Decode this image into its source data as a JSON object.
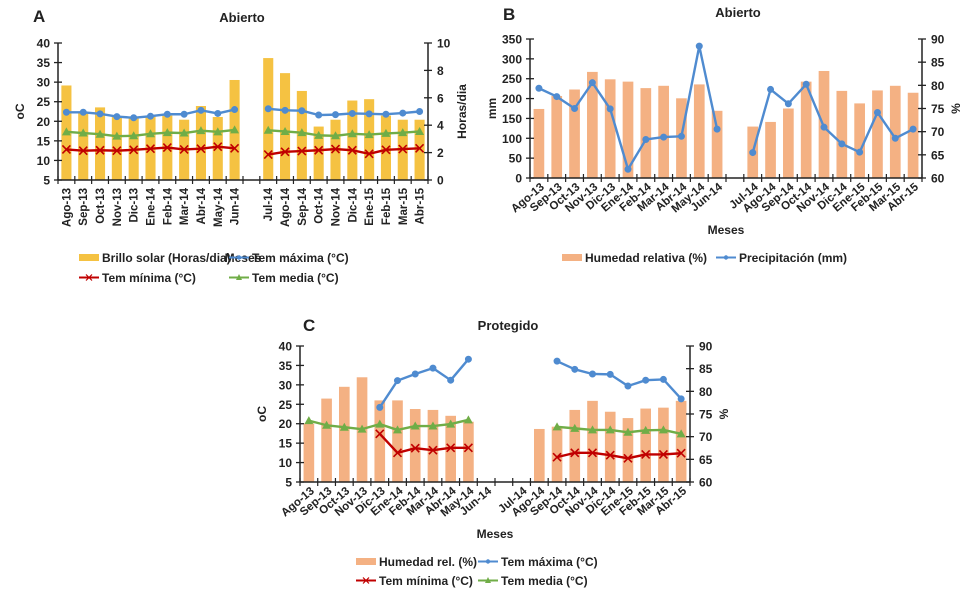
{
  "colors": {
    "brillo": "#F5C242",
    "humedad": "#F4B183",
    "max": "#4F8BD0",
    "min": "#C00000",
    "media": "#70AD47",
    "axis": "#222222"
  },
  "chart_data": [
    {
      "id": "A",
      "panel_letter": "A",
      "type": "bar",
      "title": "Abierto",
      "xlabel": "Meses",
      "ylabel": "oC",
      "y2label": "Horas/dia",
      "ylim": [
        5,
        40
      ],
      "y2lim": [
        0,
        10
      ],
      "yticks": [
        "5",
        "10",
        "15",
        "20",
        "25",
        "30",
        "35",
        "40"
      ],
      "y2ticks": [
        "0",
        "2",
        "4",
        "6",
        "8",
        "10"
      ],
      "label_rotation": "vertical",
      "categories": [
        "Ago-13",
        "Sep-13",
        "Oct-13",
        "Nov-13",
        "Dic-13",
        "Ene-14",
        "Feb-14",
        "Mar-14",
        "Abr-14",
        "May-14",
        "Jun-14",
        "",
        "Jul-14",
        "Ago-14",
        "Sep-14",
        "Oct-14",
        "Nov-14",
        "Dic-14",
        "Ene-15",
        "Feb-15",
        "Mar-15",
        "Abr-15"
      ],
      "series": [
        {
          "name": "Brillo solar (Horas/dia)",
          "kind": "bar",
          "axis": "right",
          "color_key": "brillo",
          "values": [
            6.9,
            4.9,
            5.3,
            4.6,
            4.6,
            4.7,
            4.7,
            4.4,
            5.4,
            4.6,
            7.3,
            null,
            8.9,
            7.8,
            6.5,
            3.9,
            4.4,
            5.8,
            5.9,
            4.7,
            4.4,
            4.4
          ]
        },
        {
          "name": "Tem máxima (°C)",
          "kind": "line",
          "marker": "circle",
          "axis": "left",
          "color_key": "max",
          "values": [
            22.3,
            22.3,
            21.9,
            21.2,
            20.9,
            21.3,
            21.8,
            21.8,
            22.8,
            22.0,
            23.0,
            null,
            23.2,
            22.8,
            22.7,
            21.6,
            21.7,
            22.0,
            21.9,
            21.8,
            22.1,
            22.5
          ]
        },
        {
          "name": "Tem mínima (°C)",
          "kind": "line",
          "marker": "x",
          "axis": "left",
          "color_key": "min",
          "values": [
            12.8,
            12.5,
            12.6,
            12.5,
            12.7,
            13.0,
            13.3,
            12.8,
            13.0,
            13.5,
            13.1,
            null,
            11.5,
            12.2,
            12.4,
            12.6,
            12.9,
            12.6,
            11.7,
            12.7,
            12.9,
            13.1
          ]
        },
        {
          "name": "Tem media (°C)",
          "kind": "line",
          "marker": "triangle",
          "axis": "left",
          "color_key": "media",
          "values": [
            17.3,
            17.0,
            16.7,
            16.2,
            16.3,
            16.8,
            17.1,
            17.0,
            17.6,
            17.3,
            17.8,
            null,
            17.7,
            17.4,
            17.1,
            16.4,
            16.3,
            16.8,
            16.6,
            16.9,
            17.1,
            17.4
          ]
        }
      ],
      "legend": [
        [
          "Brillo solar (Horas/dia)",
          "Tem máxima (°C)"
        ],
        [
          "Tem mínima (°C)",
          "Tem media (°C)"
        ]
      ],
      "legend_position": "bottom",
      "grid": false
    },
    {
      "id": "B",
      "panel_letter": "B",
      "type": "bar",
      "title": "Abierto",
      "xlabel": "Meses",
      "ylabel": "mm",
      "y2label": "%",
      "ylim": [
        0,
        350
      ],
      "y2lim": [
        60,
        90
      ],
      "yticks": [
        "0",
        "50",
        "100",
        "150",
        "200",
        "250",
        "300",
        "350"
      ],
      "y2ticks": [
        "60",
        "65",
        "70",
        "75",
        "80",
        "85",
        "90"
      ],
      "label_rotation": "diagonal",
      "categories": [
        "Ago-13",
        "Sep-13",
        "Oct-13",
        "Nov-13",
        "Dic-13",
        "Ene-14",
        "Feb-14",
        "Mar-14",
        "Abr-14",
        "May-14",
        "Jun-14",
        "",
        "Jul-14",
        "Ago-14",
        "Sep-14",
        "Oct-14",
        "Nov-14",
        "Dic-14",
        "Ene-15",
        "Feb-15",
        "Mar-15",
        "Abr-15"
      ],
      "series": [
        {
          "name": "Humedad relativa (%)",
          "kind": "bar",
          "axis": "right",
          "color_key": "humedad",
          "values": [
            74.9,
            77.7,
            79.1,
            82.9,
            81.3,
            80.8,
            79.4,
            79.9,
            77.2,
            80.2,
            74.5,
            null,
            71.1,
            72.1,
            75.0,
            80.8,
            83.1,
            78.8,
            76.1,
            78.9,
            79.9,
            78.4
          ]
        },
        {
          "name": "Precipitación (mm)",
          "kind": "line",
          "marker": "circle",
          "axis": "left",
          "color_key": "max",
          "values": [
            226,
            205,
            175,
            240,
            174,
            22,
            97,
            103,
            105,
            332,
            123,
            null,
            64,
            223,
            187,
            236,
            128,
            86,
            65,
            165,
            100,
            123
          ]
        }
      ],
      "legend": [
        [
          "Humedad relativa (%)",
          "Precipitación (mm)"
        ]
      ],
      "legend_position": "bottom",
      "grid": false
    },
    {
      "id": "C",
      "panel_letter": "C",
      "type": "bar",
      "title": "Protegido",
      "xlabel": "Meses",
      "ylabel": "oC",
      "y2label": "%",
      "ylim": [
        5,
        40
      ],
      "y2lim": [
        60,
        90
      ],
      "yticks": [
        "5",
        "10",
        "15",
        "20",
        "25",
        "30",
        "35",
        "40"
      ],
      "y2ticks": [
        "60",
        "65",
        "70",
        "75",
        "80",
        "85",
        "90"
      ],
      "label_rotation": "diagonal",
      "categories": [
        "Ago-13",
        "Sep-13",
        "Oct-13",
        "Nov-13",
        "Dic-13",
        "Ene-14",
        "Feb-14",
        "Mar-14",
        "Abr-14",
        "May-14",
        "Jun-14",
        "",
        "Jul-14",
        "Ago-14",
        "Sep-14",
        "Oct-14",
        "Nov-14",
        "Dic-14",
        "Ene-15",
        "Feb-15",
        "Mar-15",
        "Abr-15"
      ],
      "series": [
        {
          "name": "Humedad rel. (%)",
          "kind": "bar",
          "axis": "right",
          "color_key": "humedad",
          "values": [
            72.9,
            78.4,
            81.0,
            83.1,
            78.0,
            78.0,
            76.1,
            75.9,
            74.6,
            73.3,
            null,
            null,
            null,
            71.7,
            72.2,
            75.9,
            77.9,
            75.5,
            74.1,
            76.2,
            76.4,
            77.9
          ]
        },
        {
          "name": "Tem máxima (°C)",
          "kind": "line",
          "marker": "circle",
          "axis": "left",
          "color_key": "max",
          "values": [
            null,
            null,
            null,
            null,
            24.2,
            31.1,
            32.8,
            34.3,
            31.2,
            36.6,
            null,
            null,
            null,
            null,
            36.1,
            34.0,
            32.8,
            32.7,
            29.7,
            31.2,
            31.4,
            26.4
          ]
        },
        {
          "name": "Tem mínima (°C)",
          "kind": "line",
          "marker": "x",
          "axis": "left",
          "color_key": "min",
          "values": [
            null,
            null,
            null,
            null,
            17.4,
            12.5,
            13.7,
            13.2,
            13.8,
            13.8,
            null,
            null,
            null,
            null,
            11.4,
            12.5,
            12.5,
            11.9,
            11.1,
            12.1,
            12.1,
            12.4
          ]
        },
        {
          "name": "Tem media (°C)",
          "kind": "line",
          "marker": "triangle",
          "axis": "left",
          "color_key": "media",
          "values": [
            20.8,
            19.6,
            19.1,
            18.6,
            19.9,
            18.4,
            19.4,
            19.4,
            19.9,
            21.0,
            null,
            null,
            null,
            null,
            19.2,
            18.8,
            18.4,
            18.4,
            17.8,
            18.3,
            18.4,
            17.4
          ]
        }
      ],
      "legend": [
        [
          "Humedad rel. (%)",
          "Tem máxima (°C)"
        ],
        [
          "Tem mínima (°C)",
          "Tem media (°C)"
        ]
      ],
      "legend_position": "bottom",
      "grid": false
    }
  ]
}
